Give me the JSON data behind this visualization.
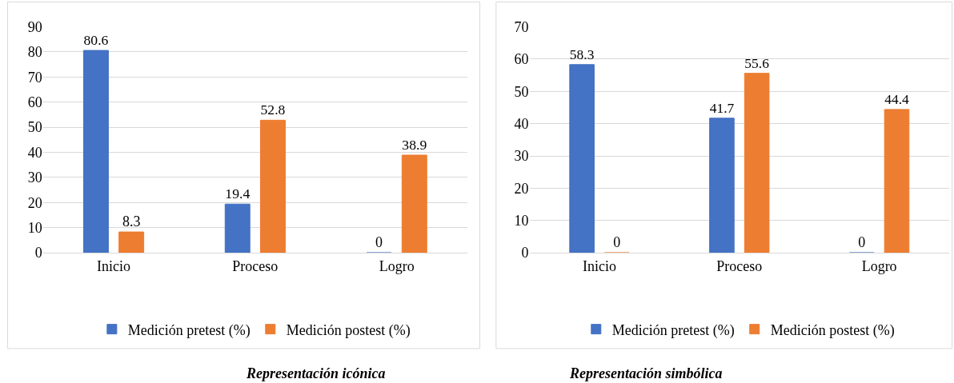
{
  "chart_data": [
    {
      "type": "bar",
      "title": "Representación icónica",
      "categories": [
        "Inicio",
        "Proceso",
        "Logro"
      ],
      "series": [
        {
          "name": "Medición pretest (%)",
          "color": "#4472c4",
          "values": [
            80.6,
            19.4,
            0
          ]
        },
        {
          "name": "Medición postest (%)",
          "color": "#ed7d31",
          "values": [
            8.3,
            52.8,
            38.9
          ]
        }
      ],
      "ylim": [
        0,
        90
      ],
      "yticks": [
        0,
        10,
        20,
        30,
        40,
        50,
        60,
        70,
        80,
        90
      ],
      "grid": "y",
      "legend": "bottom",
      "data_labels": true
    },
    {
      "type": "bar",
      "title": "Representación simbólica",
      "categories": [
        "Inicio",
        "Proceso",
        "Logro"
      ],
      "series": [
        {
          "name": "Medición pretest (%)",
          "color": "#4472c4",
          "values": [
            58.3,
            41.7,
            0
          ]
        },
        {
          "name": "Medición postest (%)",
          "color": "#ed7d31",
          "values": [
            0,
            55.6,
            44.4
          ]
        }
      ],
      "ylim": [
        0,
        70
      ],
      "yticks": [
        0,
        10,
        20,
        30,
        40,
        50,
        60,
        70
      ],
      "grid": "y",
      "legend": "bottom",
      "data_labels": true
    }
  ]
}
